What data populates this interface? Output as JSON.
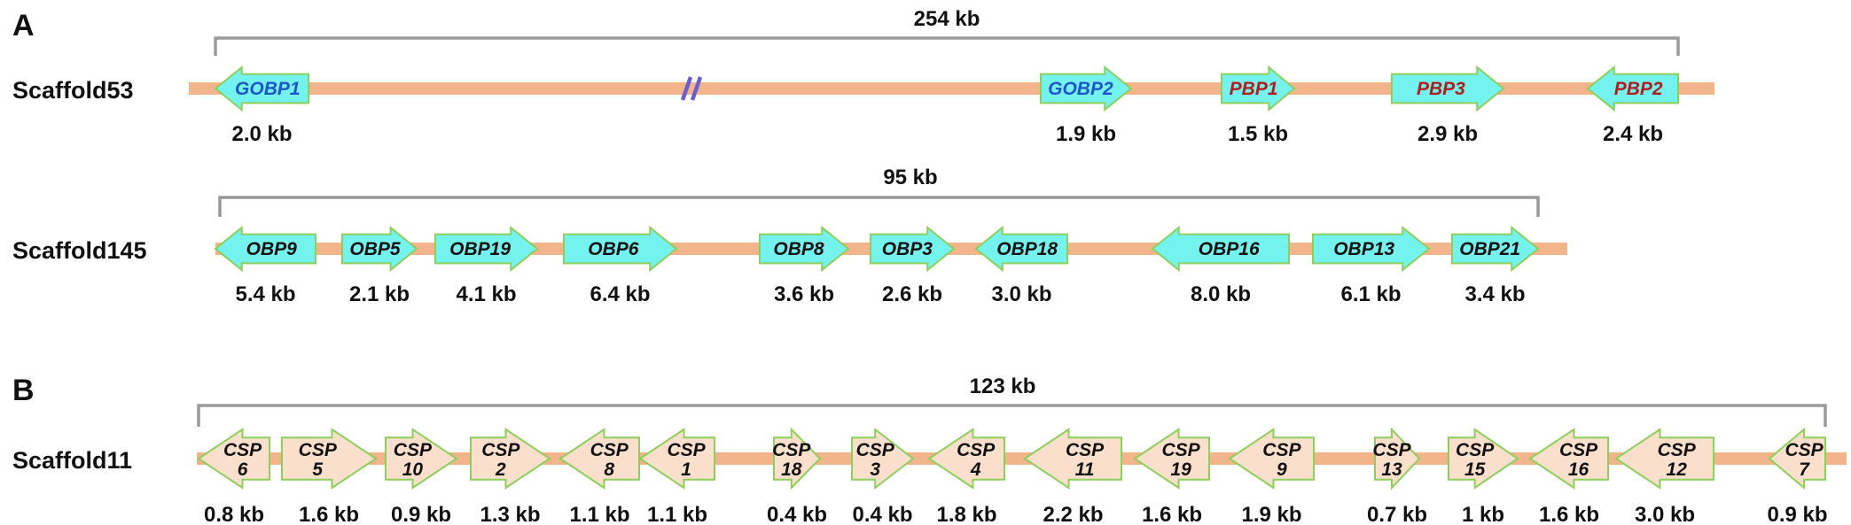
{
  "panels": [
    {
      "label": "A"
    },
    {
      "label": "B"
    }
  ],
  "colors": {
    "scaffold": "#f2b48a",
    "bracket": "#9a9a9a",
    "obp_fill": "#74f2ee",
    "csp_fill": "#fbdfcd",
    "arrow_stroke": "#8ccf5a",
    "gobp_text": "#1f56c8",
    "pbp_text": "#b01e1e",
    "obp_text": "#111111",
    "break_mark": "#6b5fd0"
  },
  "scaffolds": [
    {
      "name": "Scaffold53",
      "span": "254 kb",
      "has_break": true,
      "genes": [
        {
          "name": "GOBP1",
          "dir": "left",
          "size": "2.0 kb",
          "family": "gobp"
        },
        {
          "name": "GOBP2",
          "dir": "right",
          "size": "1.9 kb",
          "family": "gobp"
        },
        {
          "name": "PBP1",
          "dir": "right",
          "size": "1.5 kb",
          "family": "pbp"
        },
        {
          "name": "PBP3",
          "dir": "right",
          "size": "2.9 kb",
          "family": "pbp"
        },
        {
          "name": "PBP2",
          "dir": "left",
          "size": "2.4 kb",
          "family": "pbp"
        }
      ]
    },
    {
      "name": "Scaffold145",
      "span": "95 kb",
      "has_break": false,
      "genes": [
        {
          "name": "OBP9",
          "dir": "left",
          "size": "5.4 kb",
          "family": "obp"
        },
        {
          "name": "OBP5",
          "dir": "right",
          "size": "2.1 kb",
          "family": "obp"
        },
        {
          "name": "OBP19",
          "dir": "right",
          "size": "4.1 kb",
          "family": "obp"
        },
        {
          "name": "OBP6",
          "dir": "right",
          "size": "6.4 kb",
          "family": "obp"
        },
        {
          "name": "OBP8",
          "dir": "right",
          "size": "3.6 kb",
          "family": "obp"
        },
        {
          "name": "OBP3",
          "dir": "right",
          "size": "2.6 kb",
          "family": "obp"
        },
        {
          "name": "OBP18",
          "dir": "left",
          "size": "3.0 kb",
          "family": "obp"
        },
        {
          "name": "OBP16",
          "dir": "left",
          "size": "8.0 kb",
          "family": "obp"
        },
        {
          "name": "OBP13",
          "dir": "right",
          "size": "6.1 kb",
          "family": "obp"
        },
        {
          "name": "OBP21",
          "dir": "right",
          "size": "3.4 kb",
          "family": "obp"
        }
      ]
    },
    {
      "name": "Scaffold11",
      "span": "123 kb",
      "has_break": false,
      "genes": [
        {
          "name": "CSP 6",
          "dir": "left",
          "size": "0.8 kb",
          "family": "csp"
        },
        {
          "name": "CSP 5",
          "dir": "right",
          "size": "1.6 kb",
          "family": "csp"
        },
        {
          "name": "CSP 10",
          "dir": "right",
          "size": "0.9 kb",
          "family": "csp"
        },
        {
          "name": "CSP 2",
          "dir": "right",
          "size": "1.3 kb",
          "family": "csp"
        },
        {
          "name": "CSP 8",
          "dir": "left",
          "size": "1.1 kb",
          "family": "csp"
        },
        {
          "name": "CSP 1",
          "dir": "left",
          "size": "1.1 kb",
          "family": "csp"
        },
        {
          "name": "CSP 18",
          "dir": "right",
          "size": "0.4 kb",
          "family": "csp"
        },
        {
          "name": "CSP 3",
          "dir": "right",
          "size": "0.4 kb",
          "family": "csp"
        },
        {
          "name": "CSP 4",
          "dir": "left",
          "size": "1.8 kb",
          "family": "csp"
        },
        {
          "name": "CSP 11",
          "dir": "left",
          "size": "2.2 kb",
          "family": "csp"
        },
        {
          "name": "CSP 19",
          "dir": "left",
          "size": "1.6 kb",
          "family": "csp"
        },
        {
          "name": "CSP 9",
          "dir": "left",
          "size": "1.9 kb",
          "family": "csp"
        },
        {
          "name": "CSP 13",
          "dir": "right",
          "size": "0.7 kb",
          "family": "csp"
        },
        {
          "name": "CSP 15",
          "dir": "right",
          "size": "1 kb",
          "family": "csp"
        },
        {
          "name": "CSP 16",
          "dir": "left",
          "size": "1.6 kb",
          "family": "csp"
        },
        {
          "name": "CSP 12",
          "dir": "left",
          "size": "3.0 kb",
          "family": "csp"
        },
        {
          "name": "CSP 7",
          "dir": "left",
          "size": "0.9 kb",
          "family": "csp"
        }
      ]
    }
  ]
}
